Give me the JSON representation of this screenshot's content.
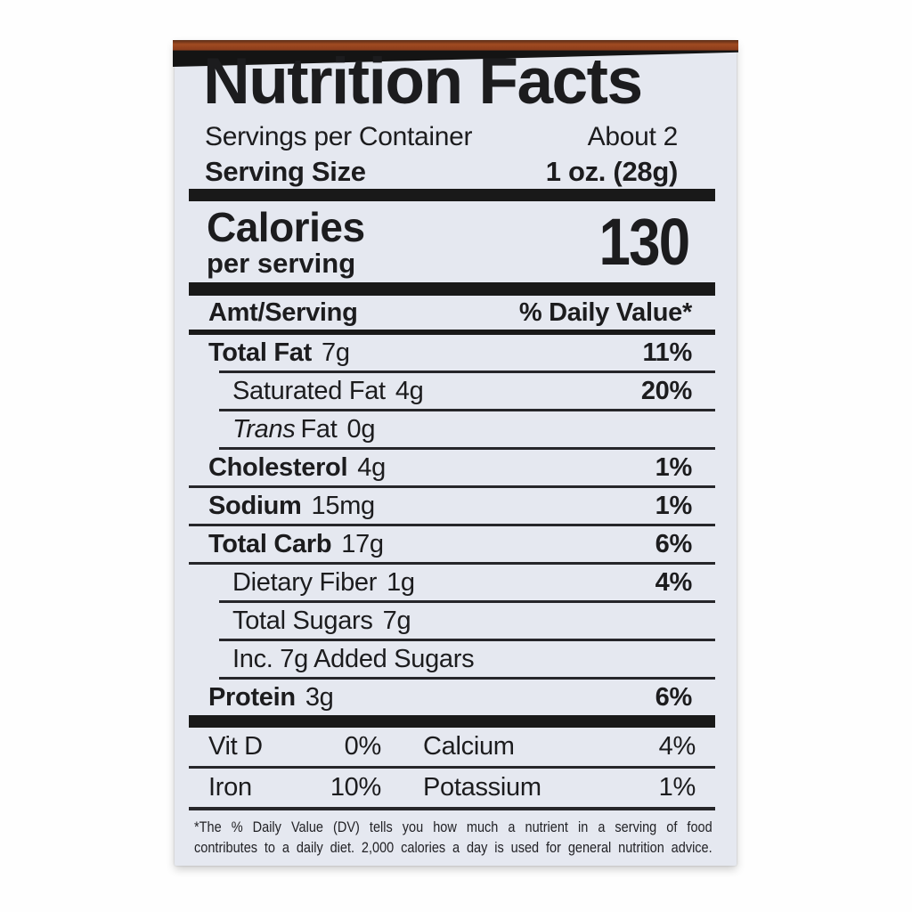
{
  "colors": {
    "label_background": "#e5e8f0",
    "ink": "#1c1c1e",
    "package_edge_orange": "#9c4a22",
    "package_edge_black": "#141414",
    "page_background": "#ffffff"
  },
  "label": {
    "title": "Nutrition Facts",
    "servings_per_container": {
      "label": "Servings per Container",
      "value": "About 2"
    },
    "serving_size": {
      "label": "Serving Size",
      "value": "1 oz. (28g)"
    },
    "calories": {
      "label": "Calories",
      "sublabel": "per serving",
      "value": "130"
    },
    "columns": {
      "amount": "Amt/Serving",
      "daily_value": "% Daily Value*"
    },
    "nutrients": [
      {
        "name": "Total Fat",
        "amount": "7g",
        "dv": "11%"
      },
      {
        "name": "Saturated Fat",
        "amount": "4g",
        "dv": "20%"
      },
      {
        "name_italic": "Trans",
        "name": "Fat",
        "amount": "0g",
        "dv": ""
      },
      {
        "name": "Cholesterol",
        "amount": "4g",
        "dv": "1%"
      },
      {
        "name": "Sodium",
        "amount": "15mg",
        "dv": "1%"
      },
      {
        "name": "Total Carb",
        "amount": "17g",
        "dv": "6%"
      },
      {
        "name": "Dietary Fiber",
        "amount": "1g",
        "dv": "4%"
      },
      {
        "name": "Total Sugars",
        "amount": "7g",
        "dv": ""
      },
      {
        "name": "Inc. 7g Added Sugars",
        "amount": "",
        "dv": ""
      },
      {
        "name": "Protein",
        "amount": "3g",
        "dv": "6%"
      }
    ],
    "micronutrients": {
      "row1": {
        "name1": "Vit D",
        "value1": "0%",
        "name2": "Calcium",
        "value2": "4%"
      },
      "row2": {
        "name1": "Iron",
        "value1": "10%",
        "name2": "Potassium",
        "value2": "1%"
      }
    },
    "footnote_lines": [
      "*The % Daily Value (DV) tells you how much a nutrient in a serving of food",
      "contributes to a daily diet. 2,000 calories a day is used for general nutrition advice."
    ]
  }
}
